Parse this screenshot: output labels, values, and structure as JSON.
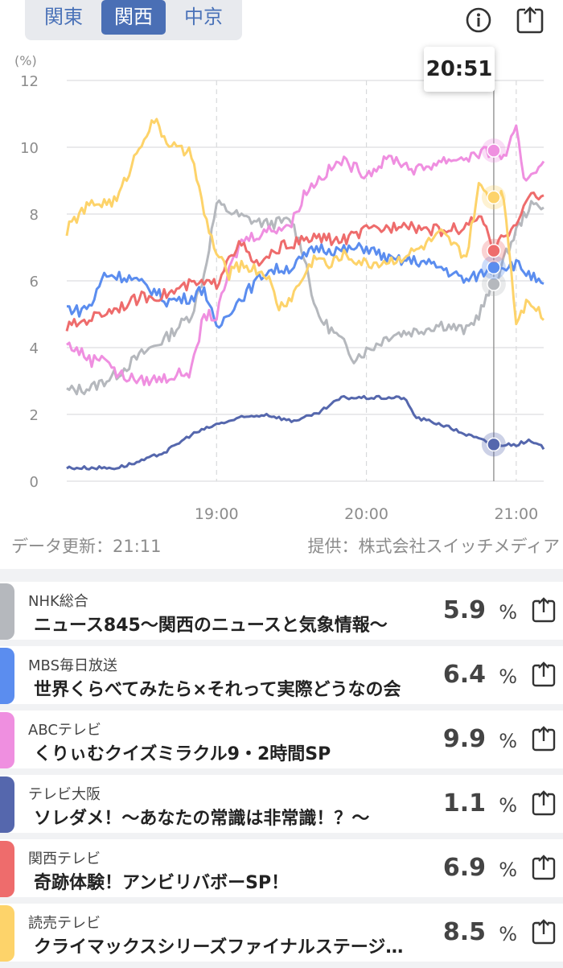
{
  "tabs": {
    "kanto": "関東",
    "kansai": "関西",
    "chukyo": "中京",
    "active": "kansai"
  },
  "tooltip_time": "20:51",
  "footer": {
    "updated": "データ更新：21:11",
    "provider": "提供：株式会社スイッチメディア"
  },
  "colors": {
    "nhk": "#b5b8bd",
    "mbs": "#5b8def",
    "abc": "#ef8fe0",
    "tvo": "#5567ad",
    "ktv": "#ee6c6c",
    "ytv": "#fdd36a"
  },
  "programs": [
    {
      "station": "NHK総合",
      "program": "ニュース845〜関西のニュースと気象情報〜",
      "rating": "5.9",
      "unit": "%",
      "color": "#b5b8bd"
    },
    {
      "station": "MBS毎日放送",
      "program": "世界くらべてみたら×それって実際どうなの会",
      "rating": "6.4",
      "unit": "%",
      "color": "#5b8def"
    },
    {
      "station": "ABCテレビ",
      "program": "くりぃむクイズミラクル9・2時間SP",
      "rating": "9.9",
      "unit": "%",
      "color": "#ef8fe0"
    },
    {
      "station": "テレビ大阪",
      "program": "ソレダメ！〜あなたの常識は非常識！？〜",
      "rating": "1.1",
      "unit": "%",
      "color": "#5567ad"
    },
    {
      "station": "関西テレビ",
      "program": "奇跡体験！アンビリバボーSP！",
      "rating": "6.9",
      "unit": "%",
      "color": "#ee6c6c"
    },
    {
      "station": "読売テレビ",
      "program": "クライマックスシリーズファイナルステージ…",
      "rating": "8.5",
      "unit": "%",
      "color": "#fdd36a"
    }
  ],
  "chart_data": {
    "type": "line",
    "ylabel": "(%)",
    "ylim": [
      0,
      12
    ],
    "yticks": [
      0,
      2,
      4,
      6,
      8,
      10,
      12
    ],
    "xlim": [
      "18:00",
      "21:11"
    ],
    "xticks": [
      "19:00",
      "20:00",
      "21:00"
    ],
    "cursor": "20:51",
    "grid": true,
    "series": [
      {
        "name": "NHK総合",
        "color": "#b5b8bd",
        "points": [
          [
            "18:00",
            2.7
          ],
          [
            "18:10",
            2.8
          ],
          [
            "18:20",
            3.2
          ],
          [
            "18:30",
            3.8
          ],
          [
            "18:40",
            4.3
          ],
          [
            "18:50",
            5.0
          ],
          [
            "18:55",
            6.2
          ],
          [
            "19:00",
            8.3
          ],
          [
            "19:10",
            7.9
          ],
          [
            "19:20",
            7.7
          ],
          [
            "19:30",
            7.8
          ],
          [
            "19:35",
            6.8
          ],
          [
            "19:40",
            5.0
          ],
          [
            "19:50",
            4.2
          ],
          [
            "19:55",
            3.7
          ],
          [
            "20:00",
            3.9
          ],
          [
            "20:10",
            4.4
          ],
          [
            "20:20",
            4.5
          ],
          [
            "20:30",
            4.7
          ],
          [
            "20:40",
            4.5
          ],
          [
            "20:45",
            5.0
          ],
          [
            "20:51",
            5.9
          ],
          [
            "21:00",
            7.5
          ],
          [
            "21:05",
            8.2
          ],
          [
            "21:11",
            8.3
          ]
        ]
      },
      {
        "name": "MBS毎日放送",
        "color": "#5b8def",
        "points": [
          [
            "18:00",
            5.2
          ],
          [
            "18:05",
            5.1
          ],
          [
            "18:10",
            5.3
          ],
          [
            "18:15",
            6.2
          ],
          [
            "18:25",
            6.1
          ],
          [
            "18:35",
            5.7
          ],
          [
            "18:40",
            5.4
          ],
          [
            "18:50",
            5.5
          ],
          [
            "18:55",
            5.8
          ],
          [
            "19:00",
            4.5
          ],
          [
            "19:05",
            5.1
          ],
          [
            "19:10",
            5.5
          ],
          [
            "19:20",
            6.3
          ],
          [
            "19:30",
            6.4
          ],
          [
            "19:40",
            7.0
          ],
          [
            "19:50",
            6.9
          ],
          [
            "20:00",
            7.0
          ],
          [
            "20:10",
            6.6
          ],
          [
            "20:20",
            6.6
          ],
          [
            "20:30",
            6.4
          ],
          [
            "20:40",
            6.0
          ],
          [
            "20:51",
            6.4
          ],
          [
            "21:00",
            6.5
          ],
          [
            "21:05",
            6.2
          ],
          [
            "21:11",
            5.8
          ]
        ]
      },
      {
        "name": "ABCテレビ",
        "color": "#ef8fe0",
        "points": [
          [
            "18:00",
            4.1
          ],
          [
            "18:05",
            3.9
          ],
          [
            "18:10",
            3.6
          ],
          [
            "18:15",
            3.8
          ],
          [
            "18:20",
            3.2
          ],
          [
            "18:30",
            3.0
          ],
          [
            "18:40",
            3.1
          ],
          [
            "18:50",
            3.3
          ],
          [
            "18:55",
            5.0
          ],
          [
            "19:00",
            4.9
          ],
          [
            "19:05",
            6.3
          ],
          [
            "19:10",
            7.2
          ],
          [
            "19:20",
            7.5
          ],
          [
            "19:30",
            7.7
          ],
          [
            "19:35",
            8.6
          ],
          [
            "19:40",
            9.0
          ],
          [
            "19:50",
            9.6
          ],
          [
            "20:00",
            9.2
          ],
          [
            "20:10",
            9.7
          ],
          [
            "20:20",
            9.3
          ],
          [
            "20:30",
            9.6
          ],
          [
            "20:40",
            9.7
          ],
          [
            "20:51",
            9.9
          ],
          [
            "20:55",
            9.7
          ],
          [
            "21:00",
            10.5
          ],
          [
            "21:03",
            9.0
          ],
          [
            "21:11",
            9.6
          ]
        ]
      },
      {
        "name": "テレビ大阪",
        "color": "#5567ad",
        "points": [
          [
            "18:00",
            0.4
          ],
          [
            "18:10",
            0.4
          ],
          [
            "18:20",
            0.4
          ],
          [
            "18:30",
            0.6
          ],
          [
            "18:40",
            0.9
          ],
          [
            "18:50",
            1.4
          ],
          [
            "19:00",
            1.7
          ],
          [
            "19:10",
            1.9
          ],
          [
            "19:20",
            2.0
          ],
          [
            "19:30",
            1.8
          ],
          [
            "19:40",
            2.0
          ],
          [
            "19:50",
            2.5
          ],
          [
            "20:00",
            2.5
          ],
          [
            "20:10",
            2.5
          ],
          [
            "20:15",
            2.5
          ],
          [
            "20:20",
            1.9
          ],
          [
            "20:30",
            1.7
          ],
          [
            "20:40",
            1.4
          ],
          [
            "20:51",
            1.1
          ],
          [
            "21:00",
            1.1
          ],
          [
            "21:05",
            1.2
          ],
          [
            "21:11",
            1.0
          ]
        ]
      },
      {
        "name": "関西テレビ",
        "color": "#ee6c6c",
        "points": [
          [
            "18:00",
            4.6
          ],
          [
            "18:10",
            4.9
          ],
          [
            "18:20",
            5.2
          ],
          [
            "18:30",
            5.5
          ],
          [
            "18:40",
            5.6
          ],
          [
            "18:50",
            5.9
          ],
          [
            "19:00",
            5.9
          ],
          [
            "19:05",
            6.8
          ],
          [
            "19:10",
            7.1
          ],
          [
            "19:15",
            6.5
          ],
          [
            "19:20",
            6.6
          ],
          [
            "19:25",
            7.0
          ],
          [
            "19:30",
            7.1
          ],
          [
            "19:40",
            7.3
          ],
          [
            "19:50",
            7.2
          ],
          [
            "20:00",
            7.5
          ],
          [
            "20:10",
            7.6
          ],
          [
            "20:15",
            7.8
          ],
          [
            "20:20",
            7.6
          ],
          [
            "20:30",
            7.5
          ],
          [
            "20:40",
            7.6
          ],
          [
            "20:45",
            8.0
          ],
          [
            "20:51",
            6.9
          ],
          [
            "21:00",
            7.8
          ],
          [
            "21:05",
            8.5
          ],
          [
            "21:11",
            8.5
          ]
        ]
      },
      {
        "name": "読売テレビ",
        "color": "#fdd36a",
        "points": [
          [
            "18:00",
            7.5
          ],
          [
            "18:05",
            8.0
          ],
          [
            "18:10",
            8.3
          ],
          [
            "18:20",
            8.4
          ],
          [
            "18:25",
            9.3
          ],
          [
            "18:30",
            10.2
          ],
          [
            "18:35",
            10.8
          ],
          [
            "18:40",
            10.2
          ],
          [
            "18:45",
            9.9
          ],
          [
            "18:50",
            9.8
          ],
          [
            "18:55",
            8.0
          ],
          [
            "19:00",
            6.8
          ],
          [
            "19:05",
            6.2
          ],
          [
            "19:10",
            6.5
          ],
          [
            "19:20",
            6.2
          ],
          [
            "19:25",
            5.2
          ],
          [
            "19:30",
            5.5
          ],
          [
            "19:40",
            6.8
          ],
          [
            "19:45",
            6.4
          ],
          [
            "19:50",
            6.8
          ],
          [
            "20:00",
            6.5
          ],
          [
            "20:10",
            6.6
          ],
          [
            "20:20",
            6.9
          ],
          [
            "20:30",
            7.4
          ],
          [
            "20:40",
            6.7
          ],
          [
            "20:45",
            8.8
          ],
          [
            "20:51",
            8.5
          ],
          [
            "20:55",
            8.6
          ],
          [
            "21:00",
            4.8
          ],
          [
            "21:05",
            5.5
          ],
          [
            "21:11",
            4.9
          ]
        ]
      }
    ]
  }
}
